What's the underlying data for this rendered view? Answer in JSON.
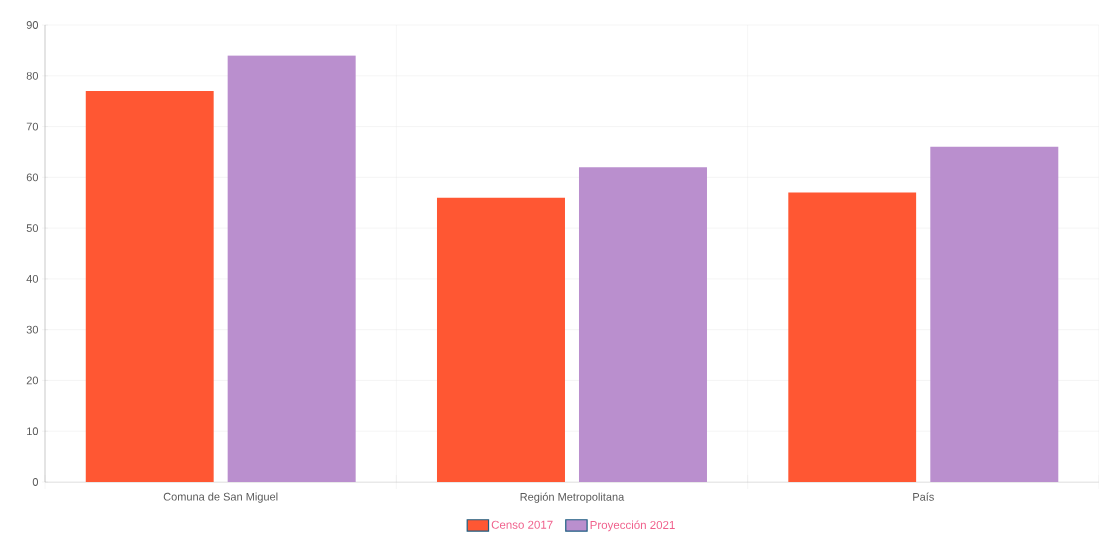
{
  "chart_data": {
    "type": "bar",
    "categories": [
      "Comuna de San Miguel",
      "Región Metropolitana",
      "País"
    ],
    "series": [
      {
        "name": "Censo 2017",
        "color": "#ff5733",
        "values": [
          77,
          56,
          57
        ]
      },
      {
        "name": "Proyección 2021",
        "color": "#ba8fce",
        "values": [
          84,
          62,
          66
        ]
      }
    ],
    "ylim": [
      0,
      90
    ],
    "yticks": [
      0,
      10,
      20,
      30,
      40,
      50,
      60,
      70,
      80,
      90
    ],
    "grid": true,
    "legend": "bottom"
  }
}
